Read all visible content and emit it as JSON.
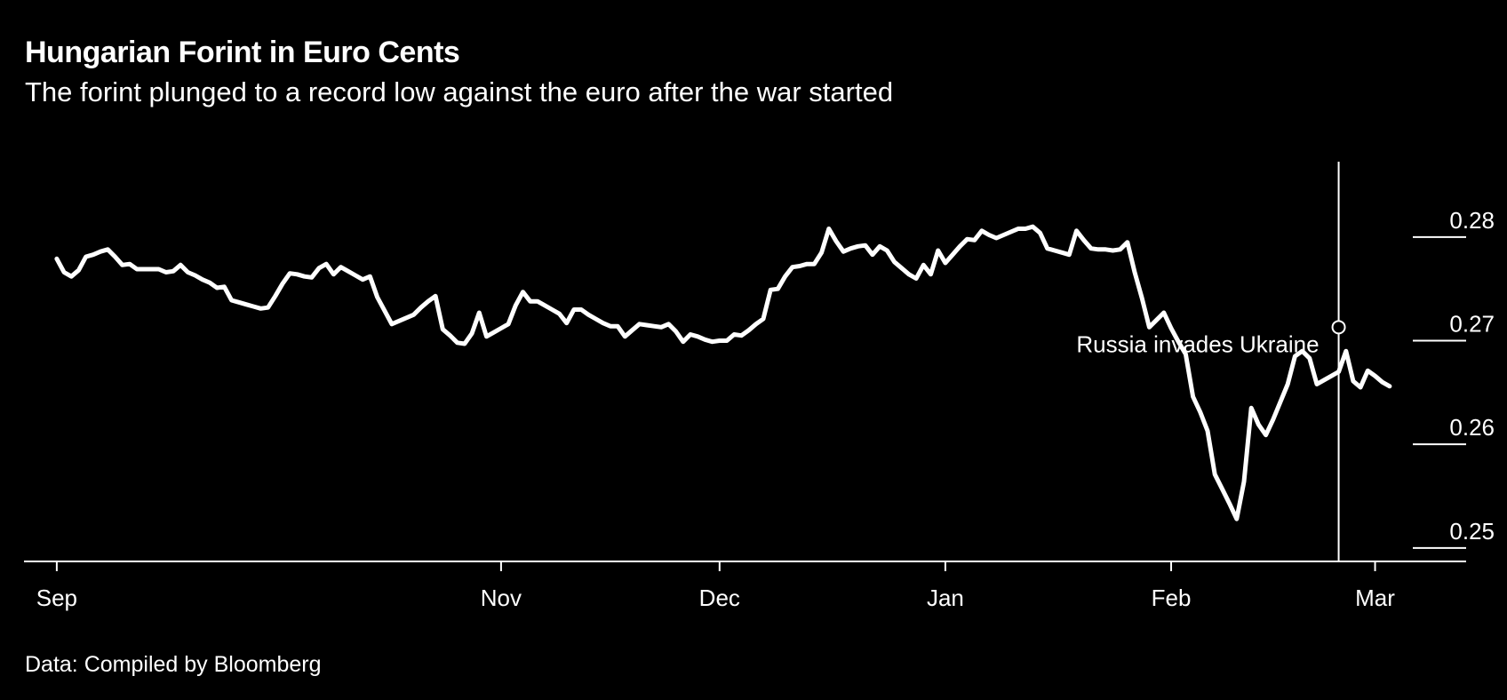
{
  "chart_data": {
    "type": "line",
    "title": "Hungarian Forint in Euro Cents",
    "subtitle": "The forint plunged to a record low against the euro after the war started",
    "source": "Data: Compiled by Bloomberg",
    "xlabel": "",
    "ylabel": "",
    "x_ticks": [
      "Sep",
      "Nov",
      "Dec",
      "Jan",
      "Feb",
      "Mar"
    ],
    "x_tick_days": [
      0,
      61,
      91,
      122,
      153,
      181
    ],
    "y_ticks": [
      "0.28",
      "0.27",
      "0.26",
      "0.25"
    ],
    "y_tick_values": [
      0.28,
      0.27,
      0.26,
      0.25
    ],
    "ylim": [
      0.2487,
      0.2883
    ],
    "xlim": [
      -4.5,
      193.5
    ],
    "grid": false,
    "annotation": {
      "label": "Russia invades Ukraine",
      "day": 176,
      "value": 0.2713
    },
    "series": [
      {
        "name": "HUF in euro cents",
        "points": [
          [
            0,
            0.2779
          ],
          [
            1,
            0.2766
          ],
          [
            2,
            0.2762
          ],
          [
            3,
            0.2768
          ],
          [
            4,
            0.2781
          ],
          [
            5,
            0.2783
          ],
          [
            6,
            0.2786
          ],
          [
            7,
            0.2788
          ],
          [
            8,
            0.2781
          ],
          [
            9,
            0.2773
          ],
          [
            10,
            0.2774
          ],
          [
            11,
            0.2769
          ],
          [
            12,
            0.2769
          ],
          [
            13,
            0.2769
          ],
          [
            14,
            0.2769
          ],
          [
            15,
            0.2766
          ],
          [
            16,
            0.2767
          ],
          [
            17,
            0.2773
          ],
          [
            18,
            0.2766
          ],
          [
            19,
            0.2763
          ],
          [
            20,
            0.2759
          ],
          [
            21,
            0.2756
          ],
          [
            22,
            0.2751
          ],
          [
            23,
            0.2752
          ],
          [
            24,
            0.2739
          ],
          [
            25,
            0.2737
          ],
          [
            26,
            0.2735
          ],
          [
            27,
            0.2733
          ],
          [
            28,
            0.2731
          ],
          [
            29,
            0.2732
          ],
          [
            30,
            0.2743
          ],
          [
            31,
            0.2755
          ],
          [
            32,
            0.2765
          ],
          [
            33,
            0.2764
          ],
          [
            34,
            0.2762
          ],
          [
            35,
            0.2761
          ],
          [
            36,
            0.277
          ],
          [
            37,
            0.2774
          ],
          [
            38,
            0.2764
          ],
          [
            39,
            0.2771
          ],
          [
            40,
            0.2767
          ],
          [
            41,
            0.2763
          ],
          [
            42,
            0.2759
          ],
          [
            43,
            0.2762
          ],
          [
            44,
            0.2742
          ],
          [
            45,
            0.2729
          ],
          [
            46,
            0.2716
          ],
          [
            47,
            0.2719
          ],
          [
            48,
            0.2722
          ],
          [
            49,
            0.2725
          ],
          [
            50,
            0.2732
          ],
          [
            51,
            0.2738
          ],
          [
            52,
            0.2743
          ],
          [
            53,
            0.2711
          ],
          [
            54,
            0.2705
          ],
          [
            55,
            0.2698
          ],
          [
            56,
            0.2697
          ],
          [
            57,
            0.2707
          ],
          [
            58,
            0.2727
          ],
          [
            59,
            0.2704
          ],
          [
            60,
            0.2708
          ],
          [
            61,
            0.2712
          ],
          [
            62,
            0.2716
          ],
          [
            63,
            0.2734
          ],
          [
            64,
            0.2747
          ],
          [
            65,
            0.2738
          ],
          [
            66,
            0.2738
          ],
          [
            67,
            0.2734
          ],
          [
            68,
            0.273
          ],
          [
            69,
            0.2726
          ],
          [
            70,
            0.2717
          ],
          [
            71,
            0.273
          ],
          [
            72,
            0.273
          ],
          [
            73,
            0.2725
          ],
          [
            74,
            0.2721
          ],
          [
            75,
            0.2717
          ],
          [
            76,
            0.2714
          ],
          [
            77,
            0.2714
          ],
          [
            78,
            0.2704
          ],
          [
            79,
            0.271
          ],
          [
            80,
            0.2716
          ],
          [
            81,
            0.2715
          ],
          [
            82,
            0.2714
          ],
          [
            83,
            0.2713
          ],
          [
            84,
            0.2716
          ],
          [
            85,
            0.2709
          ],
          [
            86,
            0.2699
          ],
          [
            87,
            0.2706
          ],
          [
            88,
            0.2704
          ],
          [
            89,
            0.2701
          ],
          [
            90,
            0.2699
          ],
          [
            91,
            0.27
          ],
          [
            92,
            0.27
          ],
          [
            93,
            0.2706
          ],
          [
            94,
            0.2705
          ],
          [
            95,
            0.271
          ],
          [
            96,
            0.2716
          ],
          [
            97,
            0.2721
          ],
          [
            98,
            0.2749
          ],
          [
            99,
            0.275
          ],
          [
            100,
            0.2762
          ],
          [
            101,
            0.2771
          ],
          [
            102,
            0.2772
          ],
          [
            103,
            0.2774
          ],
          [
            104,
            0.2774
          ],
          [
            105,
            0.2785
          ],
          [
            106,
            0.2808
          ],
          [
            107,
            0.2796
          ],
          [
            108,
            0.2786
          ],
          [
            109,
            0.2789
          ],
          [
            110,
            0.2791
          ],
          [
            111,
            0.2792
          ],
          [
            112,
            0.2783
          ],
          [
            113,
            0.2791
          ],
          [
            114,
            0.2787
          ],
          [
            115,
            0.2776
          ],
          [
            116,
            0.277
          ],
          [
            117,
            0.2764
          ],
          [
            118,
            0.276
          ],
          [
            119,
            0.2773
          ],
          [
            120,
            0.2764
          ],
          [
            121,
            0.2787
          ],
          [
            122,
            0.2775
          ],
          [
            123,
            0.2783
          ],
          [
            124,
            0.2791
          ],
          [
            125,
            0.2798
          ],
          [
            126,
            0.2797
          ],
          [
            127,
            0.2806
          ],
          [
            128,
            0.2802
          ],
          [
            129,
            0.2799
          ],
          [
            130,
            0.2802
          ],
          [
            131,
            0.2805
          ],
          [
            132,
            0.2808
          ],
          [
            133,
            0.2808
          ],
          [
            134,
            0.281
          ],
          [
            135,
            0.2804
          ],
          [
            136,
            0.2789
          ],
          [
            137,
            0.2787
          ],
          [
            138,
            0.2785
          ],
          [
            139,
            0.2783
          ],
          [
            140,
            0.2806
          ],
          [
            141,
            0.2797
          ],
          [
            142,
            0.2789
          ],
          [
            143,
            0.2788
          ],
          [
            144,
            0.2788
          ],
          [
            145,
            0.2787
          ],
          [
            146,
            0.2788
          ],
          [
            147,
            0.2795
          ],
          [
            148,
            0.2766
          ],
          [
            149,
            0.2741
          ],
          [
            150,
            0.2713
          ],
          [
            151,
            0.272
          ],
          [
            152,
            0.2727
          ],
          [
            153,
            0.2712
          ],
          [
            154,
            0.2699
          ],
          [
            155,
            0.2687
          ],
          [
            156,
            0.2646
          ],
          [
            157,
            0.2631
          ],
          [
            158,
            0.2613
          ],
          [
            159,
            0.2571
          ],
          [
            160,
            0.2557
          ],
          [
            161,
            0.2543
          ],
          [
            162,
            0.2528
          ],
          [
            163,
            0.2564
          ],
          [
            164,
            0.2635
          ],
          [
            165,
            0.2619
          ],
          [
            166,
            0.2609
          ],
          [
            167,
            0.2624
          ],
          [
            168,
            0.2641
          ],
          [
            169,
            0.2658
          ],
          [
            170,
            0.2685
          ],
          [
            171,
            0.269
          ],
          [
            172,
            0.2683
          ],
          [
            173,
            0.2658
          ],
          [
            174,
            0.2662
          ],
          [
            175,
            0.2666
          ],
          [
            176,
            0.267
          ],
          [
            177,
            0.269
          ],
          [
            178,
            0.2661
          ],
          [
            179,
            0.2655
          ],
          [
            180,
            0.2671
          ],
          [
            181,
            0.2666
          ],
          [
            182,
            0.266
          ],
          [
            183,
            0.2656
          ]
        ]
      }
    ]
  }
}
